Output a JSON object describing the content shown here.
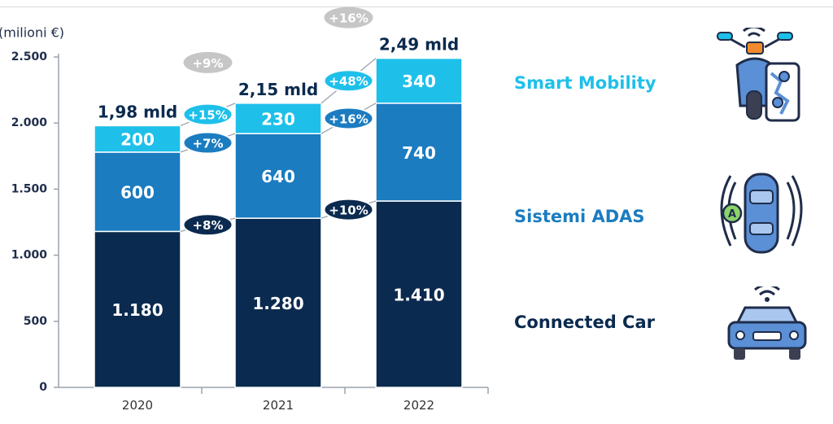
{
  "chart_data": {
    "type": "bar",
    "stacked": true,
    "unit_label": "(milioni €)",
    "categories": [
      "2020",
      "2021",
      "2022"
    ],
    "ylim": [
      0,
      2500
    ],
    "yticks": [
      0,
      500,
      1000,
      1500,
      2000,
      2500
    ],
    "ytick_labels": [
      "0",
      "500",
      "1.000",
      "1.500",
      "2.000",
      "2.500"
    ],
    "series": [
      {
        "name": "Connected Car",
        "color": "#0b2a4f",
        "values": [
          1180,
          1280,
          1410
        ],
        "labels": [
          "1.180",
          "1.280",
          "1.410"
        ]
      },
      {
        "name": "Sistemi ADAS",
        "color": "#1b7cc0",
        "values": [
          600,
          640,
          740
        ],
        "labels": [
          "600",
          "640",
          "740"
        ]
      },
      {
        "name": "Smart Mobility",
        "color": "#1ec0ea",
        "values": [
          200,
          230,
          340
        ],
        "labels": [
          "200",
          "230",
          "340"
        ]
      }
    ],
    "totals": [
      "1,98 mld",
      "2,15 mld",
      "2,49 mld"
    ],
    "growth": [
      {
        "between": [
          0,
          1
        ],
        "series": 0,
        "text": "+8%"
      },
      {
        "between": [
          0,
          1
        ],
        "series": 1,
        "text": "+7%"
      },
      {
        "between": [
          0,
          1
        ],
        "series": 2,
        "text": "+15%"
      },
      {
        "between": [
          1,
          2
        ],
        "series": 0,
        "text": "+10%"
      },
      {
        "between": [
          1,
          2
        ],
        "series": 1,
        "text": "+16%"
      },
      {
        "between": [
          1,
          2
        ],
        "series": 2,
        "text": "+48%"
      }
    ],
    "total_growth": [
      {
        "between": [
          0,
          1
        ],
        "text": "+9%"
      },
      {
        "between": [
          1,
          2
        ],
        "text": "+16%"
      }
    ]
  },
  "legend": {
    "smart_mobility": "Smart Mobility",
    "sistemi_adas": "Sistemi ADAS",
    "connected_car": "Connected Car"
  },
  "colors": {
    "connected_car": "#0b2a4f",
    "adas": "#1b7cc0",
    "smart_mobility": "#1ec0ea",
    "total_growth_pill": "#c6c6c6",
    "axis_text": "#1f2d4a"
  },
  "icons": [
    "scooter-smartphone-map-icon",
    "car-adas-sensors-icon",
    "connected-car-wifi-icon"
  ]
}
